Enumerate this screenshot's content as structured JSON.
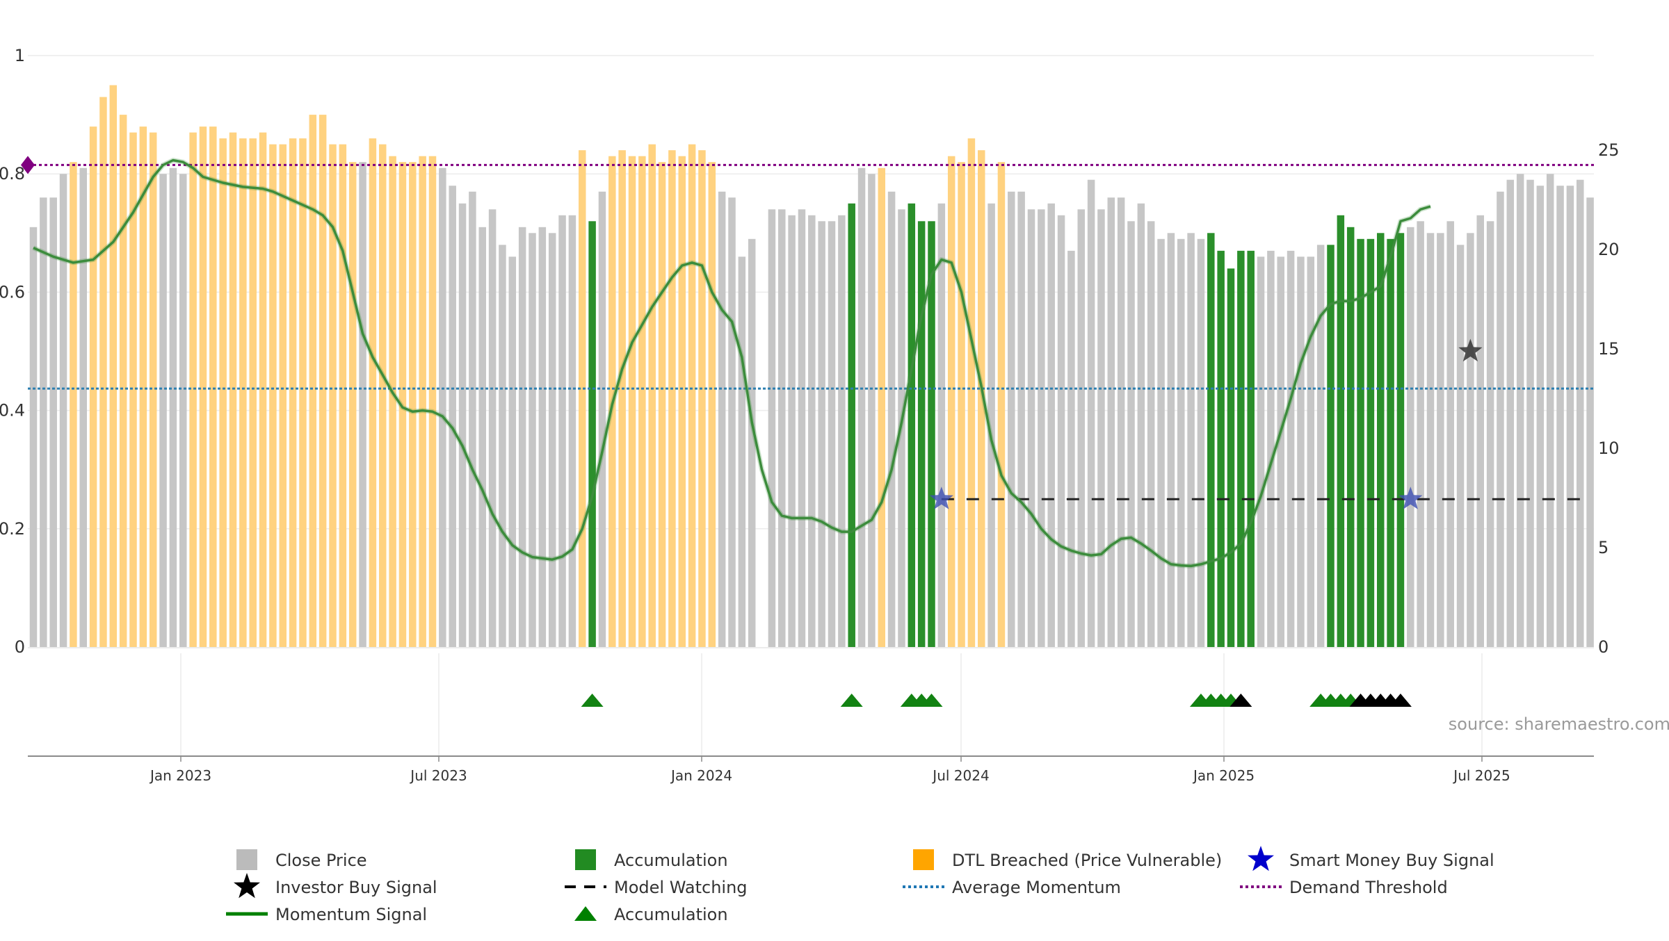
{
  "chart_data": {
    "type": "bar",
    "source": "source: sharemaestro.com",
    "y_left": {
      "ticks": [
        "0",
        "0.2",
        "0.4",
        "0.6",
        "0.8",
        "1"
      ],
      "range": [
        0,
        1
      ]
    },
    "y_right": {
      "ticks": [
        "0",
        "5",
        "10",
        "15",
        "20",
        "25"
      ],
      "range": [
        0,
        29.8
      ]
    },
    "x_ticks": [
      "Jan 2023",
      "Jul 2023",
      "Jan 2024",
      "Jul 2024",
      "Jan 2025",
      "Jul 2025"
    ],
    "legend": [
      {
        "label": "Close Price",
        "icon": "square",
        "color": "#bbbbbb"
      },
      {
        "label": "Accumulation",
        "icon": "square",
        "color": "#228B22"
      },
      {
        "label": "DTL Breached (Price Vulnerable)",
        "icon": "square",
        "color": "#FFA500"
      },
      {
        "label": "Smart Money Buy Signal",
        "icon": "star",
        "color": "#0000cc"
      },
      {
        "label": "Investor Buy Signal",
        "icon": "star",
        "color": "#000000"
      },
      {
        "label": "Model Watching",
        "icon": "dash",
        "color": "#000000"
      },
      {
        "label": "Average Momentum",
        "icon": "dot",
        "color": "#1f77b4"
      },
      {
        "label": "Demand Threshold",
        "icon": "dot",
        "color": "#800080"
      },
      {
        "label": "Momentum Signal",
        "icon": "line",
        "color": "#008000"
      },
      {
        "label": "Accumulation",
        "icon": "triangle",
        "color": "#008000"
      }
    ],
    "demand_threshold": 0.815,
    "average_momentum": 0.437,
    "model_watching": {
      "value": 0.25,
      "start_bar": 91
    },
    "smart_money_buy": [
      {
        "bar": 91,
        "value": 0.25
      },
      {
        "bar": 138,
        "value": 0.25
      }
    ],
    "investor_buy": [
      {
        "bar": 144,
        "value": 0.5
      }
    ],
    "bars": [
      {
        "v": 0.71,
        "c": "g"
      },
      {
        "v": 0.76,
        "c": "g"
      },
      {
        "v": 0.76,
        "c": "g"
      },
      {
        "v": 0.8,
        "c": "g"
      },
      {
        "v": 0.82,
        "c": "o"
      },
      {
        "v": 0.81,
        "c": "g"
      },
      {
        "v": 0.88,
        "c": "o"
      },
      {
        "v": 0.93,
        "c": "o"
      },
      {
        "v": 0.95,
        "c": "o"
      },
      {
        "v": 0.9,
        "c": "o"
      },
      {
        "v": 0.87,
        "c": "o"
      },
      {
        "v": 0.88,
        "c": "o"
      },
      {
        "v": 0.87,
        "c": "o"
      },
      {
        "v": 0.8,
        "c": "g"
      },
      {
        "v": 0.81,
        "c": "g"
      },
      {
        "v": 0.8,
        "c": "g"
      },
      {
        "v": 0.87,
        "c": "o"
      },
      {
        "v": 0.88,
        "c": "o"
      },
      {
        "v": 0.88,
        "c": "o"
      },
      {
        "v": 0.86,
        "c": "o"
      },
      {
        "v": 0.87,
        "c": "o"
      },
      {
        "v": 0.86,
        "c": "o"
      },
      {
        "v": 0.86,
        "c": "o"
      },
      {
        "v": 0.87,
        "c": "o"
      },
      {
        "v": 0.85,
        "c": "o"
      },
      {
        "v": 0.85,
        "c": "o"
      },
      {
        "v": 0.86,
        "c": "o"
      },
      {
        "v": 0.86,
        "c": "o"
      },
      {
        "v": 0.9,
        "c": "o"
      },
      {
        "v": 0.9,
        "c": "o"
      },
      {
        "v": 0.85,
        "c": "o"
      },
      {
        "v": 0.85,
        "c": "o"
      },
      {
        "v": 0.82,
        "c": "o"
      },
      {
        "v": 0.82,
        "c": "g"
      },
      {
        "v": 0.86,
        "c": "o"
      },
      {
        "v": 0.85,
        "c": "o"
      },
      {
        "v": 0.83,
        "c": "o"
      },
      {
        "v": 0.82,
        "c": "o"
      },
      {
        "v": 0.82,
        "c": "o"
      },
      {
        "v": 0.83,
        "c": "o"
      },
      {
        "v": 0.83,
        "c": "o"
      },
      {
        "v": 0.81,
        "c": "g"
      },
      {
        "v": 0.78,
        "c": "g"
      },
      {
        "v": 0.75,
        "c": "g"
      },
      {
        "v": 0.77,
        "c": "g"
      },
      {
        "v": 0.71,
        "c": "g"
      },
      {
        "v": 0.74,
        "c": "g"
      },
      {
        "v": 0.68,
        "c": "g"
      },
      {
        "v": 0.66,
        "c": "g"
      },
      {
        "v": 0.71,
        "c": "g"
      },
      {
        "v": 0.7,
        "c": "g"
      },
      {
        "v": 0.71,
        "c": "g"
      },
      {
        "v": 0.7,
        "c": "g"
      },
      {
        "v": 0.73,
        "c": "g"
      },
      {
        "v": 0.73,
        "c": "g"
      },
      {
        "v": 0.84,
        "c": "o"
      },
      {
        "v": 0.72,
        "c": "a"
      },
      {
        "v": 0.77,
        "c": "g"
      },
      {
        "v": 0.83,
        "c": "o"
      },
      {
        "v": 0.84,
        "c": "o"
      },
      {
        "v": 0.83,
        "c": "o"
      },
      {
        "v": 0.83,
        "c": "o"
      },
      {
        "v": 0.85,
        "c": "o"
      },
      {
        "v": 0.82,
        "c": "o"
      },
      {
        "v": 0.84,
        "c": "o"
      },
      {
        "v": 0.83,
        "c": "o"
      },
      {
        "v": 0.85,
        "c": "o"
      },
      {
        "v": 0.84,
        "c": "o"
      },
      {
        "v": 0.82,
        "c": "o"
      },
      {
        "v": 0.77,
        "c": "g"
      },
      {
        "v": 0.76,
        "c": "g"
      },
      {
        "v": 0.66,
        "c": "g"
      },
      {
        "v": 0.69,
        "c": "g"
      },
      {
        "v": 0.0,
        "c": "g"
      },
      {
        "v": 0.74,
        "c": "g"
      },
      {
        "v": 0.74,
        "c": "g"
      },
      {
        "v": 0.73,
        "c": "g"
      },
      {
        "v": 0.74,
        "c": "g"
      },
      {
        "v": 0.73,
        "c": "g"
      },
      {
        "v": 0.72,
        "c": "g"
      },
      {
        "v": 0.72,
        "c": "g"
      },
      {
        "v": 0.73,
        "c": "g"
      },
      {
        "v": 0.75,
        "c": "a"
      },
      {
        "v": 0.81,
        "c": "g"
      },
      {
        "v": 0.8,
        "c": "g"
      },
      {
        "v": 0.81,
        "c": "o"
      },
      {
        "v": 0.77,
        "c": "g"
      },
      {
        "v": 0.74,
        "c": "g"
      },
      {
        "v": 0.75,
        "c": "a"
      },
      {
        "v": 0.72,
        "c": "a"
      },
      {
        "v": 0.72,
        "c": "a"
      },
      {
        "v": 0.75,
        "c": "g"
      },
      {
        "v": 0.83,
        "c": "o"
      },
      {
        "v": 0.82,
        "c": "o"
      },
      {
        "v": 0.86,
        "c": "o"
      },
      {
        "v": 0.84,
        "c": "o"
      },
      {
        "v": 0.75,
        "c": "g"
      },
      {
        "v": 0.82,
        "c": "o"
      },
      {
        "v": 0.77,
        "c": "g"
      },
      {
        "v": 0.77,
        "c": "g"
      },
      {
        "v": 0.74,
        "c": "g"
      },
      {
        "v": 0.74,
        "c": "g"
      },
      {
        "v": 0.75,
        "c": "g"
      },
      {
        "v": 0.73,
        "c": "g"
      },
      {
        "v": 0.67,
        "c": "g"
      },
      {
        "v": 0.74,
        "c": "g"
      },
      {
        "v": 0.79,
        "c": "g"
      },
      {
        "v": 0.74,
        "c": "g"
      },
      {
        "v": 0.76,
        "c": "g"
      },
      {
        "v": 0.76,
        "c": "g"
      },
      {
        "v": 0.72,
        "c": "g"
      },
      {
        "v": 0.75,
        "c": "g"
      },
      {
        "v": 0.72,
        "c": "g"
      },
      {
        "v": 0.69,
        "c": "g"
      },
      {
        "v": 0.7,
        "c": "g"
      },
      {
        "v": 0.69,
        "c": "g"
      },
      {
        "v": 0.7,
        "c": "g"
      },
      {
        "v": 0.69,
        "c": "g"
      },
      {
        "v": 0.7,
        "c": "a"
      },
      {
        "v": 0.67,
        "c": "a"
      },
      {
        "v": 0.64,
        "c": "a"
      },
      {
        "v": 0.67,
        "c": "a"
      },
      {
        "v": 0.67,
        "c": "a"
      },
      {
        "v": 0.66,
        "c": "g"
      },
      {
        "v": 0.67,
        "c": "g"
      },
      {
        "v": 0.66,
        "c": "g"
      },
      {
        "v": 0.67,
        "c": "g"
      },
      {
        "v": 0.66,
        "c": "g"
      },
      {
        "v": 0.66,
        "c": "g"
      },
      {
        "v": 0.68,
        "c": "g"
      },
      {
        "v": 0.68,
        "c": "a"
      },
      {
        "v": 0.73,
        "c": "a"
      },
      {
        "v": 0.71,
        "c": "a"
      },
      {
        "v": 0.69,
        "c": "a"
      },
      {
        "v": 0.69,
        "c": "a"
      },
      {
        "v": 0.7,
        "c": "a"
      },
      {
        "v": 0.69,
        "c": "a"
      },
      {
        "v": 0.7,
        "c": "a"
      },
      {
        "v": 0.71,
        "c": "g"
      },
      {
        "v": 0.72,
        "c": "g"
      },
      {
        "v": 0.7,
        "c": "g"
      },
      {
        "v": 0.7,
        "c": "g"
      },
      {
        "v": 0.72,
        "c": "g"
      },
      {
        "v": 0.68,
        "c": "g"
      },
      {
        "v": 0.7,
        "c": "g"
      },
      {
        "v": 0.73,
        "c": "g"
      },
      {
        "v": 0.72,
        "c": "g"
      },
      {
        "v": 0.77,
        "c": "g"
      },
      {
        "v": 0.79,
        "c": "g"
      },
      {
        "v": 0.8,
        "c": "g"
      },
      {
        "v": 0.79,
        "c": "g"
      },
      {
        "v": 0.78,
        "c": "g"
      },
      {
        "v": 0.8,
        "c": "g"
      },
      {
        "v": 0.78,
        "c": "g"
      },
      {
        "v": 0.78,
        "c": "g"
      },
      {
        "v": 0.79,
        "c": "g"
      },
      {
        "v": 0.76,
        "c": "g"
      }
    ],
    "momentum_series": [
      [
        0,
        0.675
      ],
      [
        2,
        0.66
      ],
      [
        4,
        0.65
      ],
      [
        6,
        0.655
      ],
      [
        8,
        0.685
      ],
      [
        10,
        0.735
      ],
      [
        11,
        0.765
      ],
      [
        12,
        0.795
      ],
      [
        13,
        0.815
      ],
      [
        14,
        0.823
      ],
      [
        15,
        0.82
      ],
      [
        16,
        0.81
      ],
      [
        17,
        0.795
      ],
      [
        19,
        0.785
      ],
      [
        21,
        0.778
      ],
      [
        23,
        0.775
      ],
      [
        24,
        0.77
      ],
      [
        26,
        0.755
      ],
      [
        28,
        0.74
      ],
      [
        29,
        0.73
      ],
      [
        30,
        0.71
      ],
      [
        31,
        0.67
      ],
      [
        32,
        0.6
      ],
      [
        33,
        0.53
      ],
      [
        34,
        0.49
      ],
      [
        35,
        0.46
      ],
      [
        36,
        0.43
      ],
      [
        37,
        0.405
      ],
      [
        38,
        0.398
      ],
      [
        39,
        0.4
      ],
      [
        40,
        0.398
      ],
      [
        41,
        0.39
      ],
      [
        42,
        0.37
      ],
      [
        43,
        0.34
      ],
      [
        44,
        0.3
      ],
      [
        45,
        0.265
      ],
      [
        46,
        0.225
      ],
      [
        47,
        0.195
      ],
      [
        48,
        0.172
      ],
      [
        49,
        0.16
      ],
      [
        50,
        0.152
      ],
      [
        52,
        0.148
      ],
      [
        53,
        0.153
      ],
      [
        54,
        0.165
      ],
      [
        55,
        0.2
      ],
      [
        56,
        0.255
      ],
      [
        57,
        0.33
      ],
      [
        58,
        0.41
      ],
      [
        59,
        0.47
      ],
      [
        60,
        0.515
      ],
      [
        61,
        0.545
      ],
      [
        62,
        0.575
      ],
      [
        63,
        0.6
      ],
      [
        64,
        0.625
      ],
      [
        65,
        0.645
      ],
      [
        66,
        0.65
      ],
      [
        67,
        0.645
      ],
      [
        68,
        0.6
      ],
      [
        69,
        0.57
      ],
      [
        70,
        0.55
      ],
      [
        71,
        0.49
      ],
      [
        72,
        0.38
      ],
      [
        73,
        0.3
      ],
      [
        74,
        0.245
      ],
      [
        75,
        0.222
      ],
      [
        76,
        0.218
      ],
      [
        78,
        0.218
      ],
      [
        79,
        0.212
      ],
      [
        80,
        0.202
      ],
      [
        81,
        0.195
      ],
      [
        82,
        0.195
      ],
      [
        83,
        0.205
      ],
      [
        84,
        0.215
      ],
      [
        85,
        0.245
      ],
      [
        86,
        0.3
      ],
      [
        87,
        0.38
      ],
      [
        88,
        0.47
      ],
      [
        89,
        0.56
      ],
      [
        90,
        0.63
      ],
      [
        91,
        0.655
      ],
      [
        92,
        0.65
      ],
      [
        93,
        0.6
      ],
      [
        94,
        0.52
      ],
      [
        95,
        0.44
      ],
      [
        96,
        0.35
      ],
      [
        97,
        0.29
      ],
      [
        98,
        0.26
      ],
      [
        99,
        0.245
      ],
      [
        100,
        0.225
      ],
      [
        101,
        0.2
      ],
      [
        102,
        0.182
      ],
      [
        103,
        0.17
      ],
      [
        104,
        0.163
      ],
      [
        105,
        0.158
      ],
      [
        106,
        0.155
      ],
      [
        107,
        0.157
      ],
      [
        108,
        0.172
      ],
      [
        109,
        0.183
      ],
      [
        110,
        0.185
      ],
      [
        111,
        0.175
      ],
      [
        112,
        0.163
      ],
      [
        113,
        0.15
      ],
      [
        114,
        0.14
      ],
      [
        115,
        0.138
      ],
      [
        116,
        0.137
      ],
      [
        117,
        0.14
      ],
      [
        118,
        0.145
      ],
      [
        119,
        0.15
      ],
      [
        120,
        0.16
      ],
      [
        121,
        0.175
      ],
      [
        122,
        0.21
      ],
      [
        123,
        0.255
      ],
      [
        124,
        0.31
      ],
      [
        125,
        0.365
      ],
      [
        126,
        0.42
      ],
      [
        127,
        0.48
      ],
      [
        128,
        0.525
      ],
      [
        129,
        0.56
      ],
      [
        130,
        0.58
      ],
      [
        131,
        0.585
      ],
      [
        132,
        0.585
      ],
      [
        133,
        0.59
      ],
      [
        134,
        0.6
      ],
      [
        135,
        0.61
      ],
      [
        136,
        0.66
      ],
      [
        137,
        0.72
      ],
      [
        138,
        0.725
      ],
      [
        139,
        0.74
      ],
      [
        140,
        0.745
      ]
    ],
    "accumulation_triangles": [
      {
        "bar": 56,
        "color": "green"
      },
      {
        "bar": 82,
        "color": "green"
      },
      {
        "bar": 88,
        "color": "green"
      },
      {
        "bar": 89,
        "color": "green"
      },
      {
        "bar": 90,
        "color": "green"
      },
      {
        "bar": 117,
        "color": "green"
      },
      {
        "bar": 118,
        "color": "green"
      },
      {
        "bar": 119,
        "color": "green"
      },
      {
        "bar": 120,
        "color": "green"
      },
      {
        "bar": 121,
        "color": "black"
      },
      {
        "bar": 129,
        "color": "green"
      },
      {
        "bar": 130,
        "color": "green"
      },
      {
        "bar": 131,
        "color": "green"
      },
      {
        "bar": 132,
        "color": "green"
      },
      {
        "bar": 133,
        "color": "black"
      },
      {
        "bar": 134,
        "color": "black"
      },
      {
        "bar": 135,
        "color": "black"
      },
      {
        "bar": 136,
        "color": "black"
      },
      {
        "bar": 137,
        "color": "black"
      }
    ]
  }
}
